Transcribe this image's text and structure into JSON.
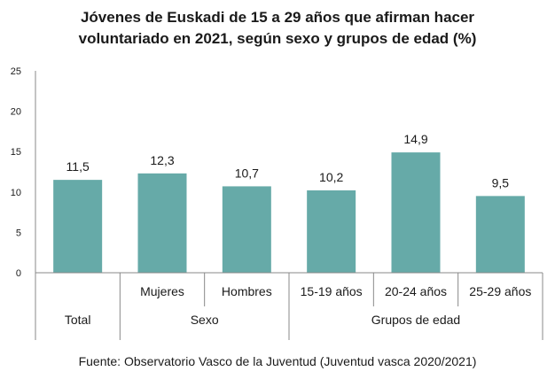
{
  "chart_data": {
    "type": "bar",
    "title_lines": [
      "Jóvenes de Euskadi de 15 a 29 años que afirman hacer",
      "voluntariado en 2021, según sexo y grupos de edad (%)"
    ],
    "categories": [
      "",
      "Mujeres",
      "Hombres",
      "15-19 años",
      "20-24 años",
      "25-29 años"
    ],
    "groups": [
      {
        "label": "Total",
        "span": 1
      },
      {
        "label": "Sexo",
        "span": 2
      },
      {
        "label": "Grupos de edad",
        "span": 3
      }
    ],
    "values": [
      11.5,
      12.3,
      10.7,
      10.2,
      14.9,
      9.5
    ],
    "value_labels": [
      "11,5",
      "12,3",
      "10,7",
      "10,2",
      "14,9",
      "9,5"
    ],
    "yticks": [
      0,
      5,
      10,
      15,
      20,
      25
    ],
    "ylim": [
      0,
      25
    ],
    "grid": false,
    "bar_color": "#66aaa8",
    "source": "Fuente: Observatorio Vasco de la Juventud (Juventud vasca 2020/2021)"
  }
}
